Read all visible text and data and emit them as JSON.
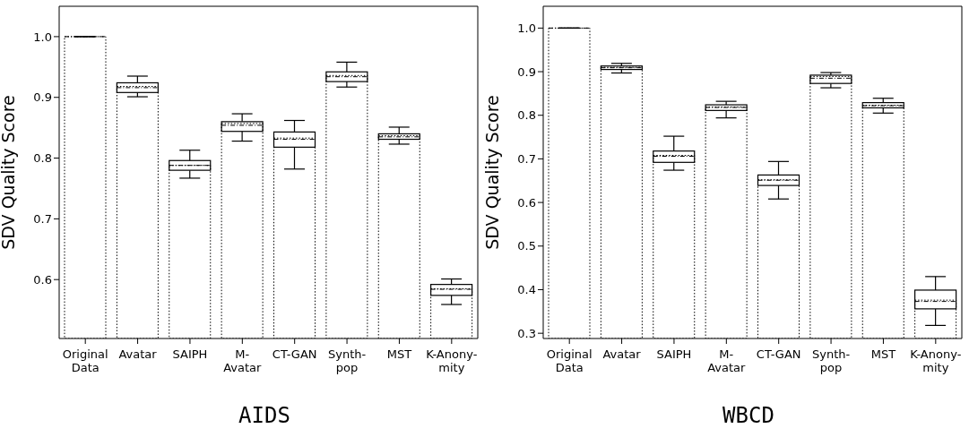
{
  "chart_data": [
    {
      "type": "box",
      "xlabel": "AIDS",
      "ylabel": "SDV Quality Score",
      "categories": [
        "Original\nData",
        "Avatar",
        "SAIPH",
        "M-\nAvatar",
        "CT-GAN",
        "Synth-\npop",
        "MST",
        "K-Anony-\nmity"
      ],
      "ylim": [
        0.503,
        1.05
      ],
      "yticks": [
        0.6,
        0.7,
        0.8,
        0.9,
        {
          "value": 1.0,
          "label": "1.0"
        }
      ],
      "series": [
        {
          "type": "box",
          "color": "#000000",
          "boxes": [
            {
              "low": 1.0,
              "q1": 1.0,
              "median": 1.0,
              "q3": 1.0,
              "high": 1.0
            },
            {
              "low": 0.901,
              "q1": 0.908,
              "median": 0.916,
              "q3": 0.924,
              "high": 0.935
            },
            {
              "low": 0.767,
              "q1": 0.78,
              "median": 0.788,
              "q3": 0.796,
              "high": 0.813
            },
            {
              "low": 0.828,
              "q1": 0.844,
              "median": 0.854,
              "q3": 0.86,
              "high": 0.873
            },
            {
              "low": 0.782,
              "q1": 0.818,
              "median": 0.831,
              "q3": 0.843,
              "high": 0.862
            },
            {
              "low": 0.917,
              "q1": 0.926,
              "median": 0.934,
              "q3": 0.942,
              "high": 0.958
            },
            {
              "low": 0.823,
              "q1": 0.831,
              "median": 0.835,
              "q3": 0.84,
              "high": 0.851
            },
            {
              "low": 0.559,
              "q1": 0.574,
              "median": 0.584,
              "q3": 0.592,
              "high": 0.601
            }
          ]
        },
        {
          "type": "bar",
          "color": "#000000",
          "line_style": "dotted",
          "values": [
            1.0,
            0.918,
            0.788,
            0.857,
            0.833,
            0.936,
            0.837,
            0.585
          ]
        }
      ]
    },
    {
      "type": "box",
      "xlabel": "WBCD",
      "ylabel": "SDV Quality Score",
      "categories": [
        "Original\nData",
        "Avatar",
        "SAIPH",
        "M-\nAvatar",
        "CT-GAN",
        "Synth-\npop",
        "MST",
        "K-Anony-\nmity"
      ],
      "ylim": [
        0.288,
        1.05
      ],
      "yticks": [
        0.3,
        0.4,
        0.5,
        0.6,
        0.7,
        0.8,
        0.9,
        {
          "value": 1.0,
          "label": "1.0"
        }
      ],
      "series": [
        {
          "type": "box",
          "color": "#000000",
          "boxes": [
            {
              "low": 1.0,
              "q1": 1.0,
              "median": 1.0,
              "q3": 1.0,
              "high": 1.0
            },
            {
              "low": 0.897,
              "q1": 0.905,
              "median": 0.909,
              "q3": 0.913,
              "high": 0.919
            },
            {
              "low": 0.674,
              "q1": 0.692,
              "median": 0.706,
              "q3": 0.718,
              "high": 0.752
            },
            {
              "low": 0.794,
              "q1": 0.811,
              "median": 0.818,
              "q3": 0.824,
              "high": 0.832
            },
            {
              "low": 0.608,
              "q1": 0.639,
              "median": 0.651,
              "q3": 0.663,
              "high": 0.694
            },
            {
              "low": 0.863,
              "q1": 0.873,
              "median": 0.885,
              "q3": 0.892,
              "high": 0.898
            },
            {
              "low": 0.805,
              "q1": 0.817,
              "median": 0.822,
              "q3": 0.829,
              "high": 0.839
            },
            {
              "low": 0.318,
              "q1": 0.356,
              "median": 0.373,
              "q3": 0.399,
              "high": 0.43
            }
          ]
        },
        {
          "type": "bar",
          "color": "#000000",
          "line_style": "dotted",
          "values": [
            1.0,
            0.91,
            0.708,
            0.819,
            0.652,
            0.889,
            0.823,
            0.376
          ]
        }
      ]
    }
  ]
}
